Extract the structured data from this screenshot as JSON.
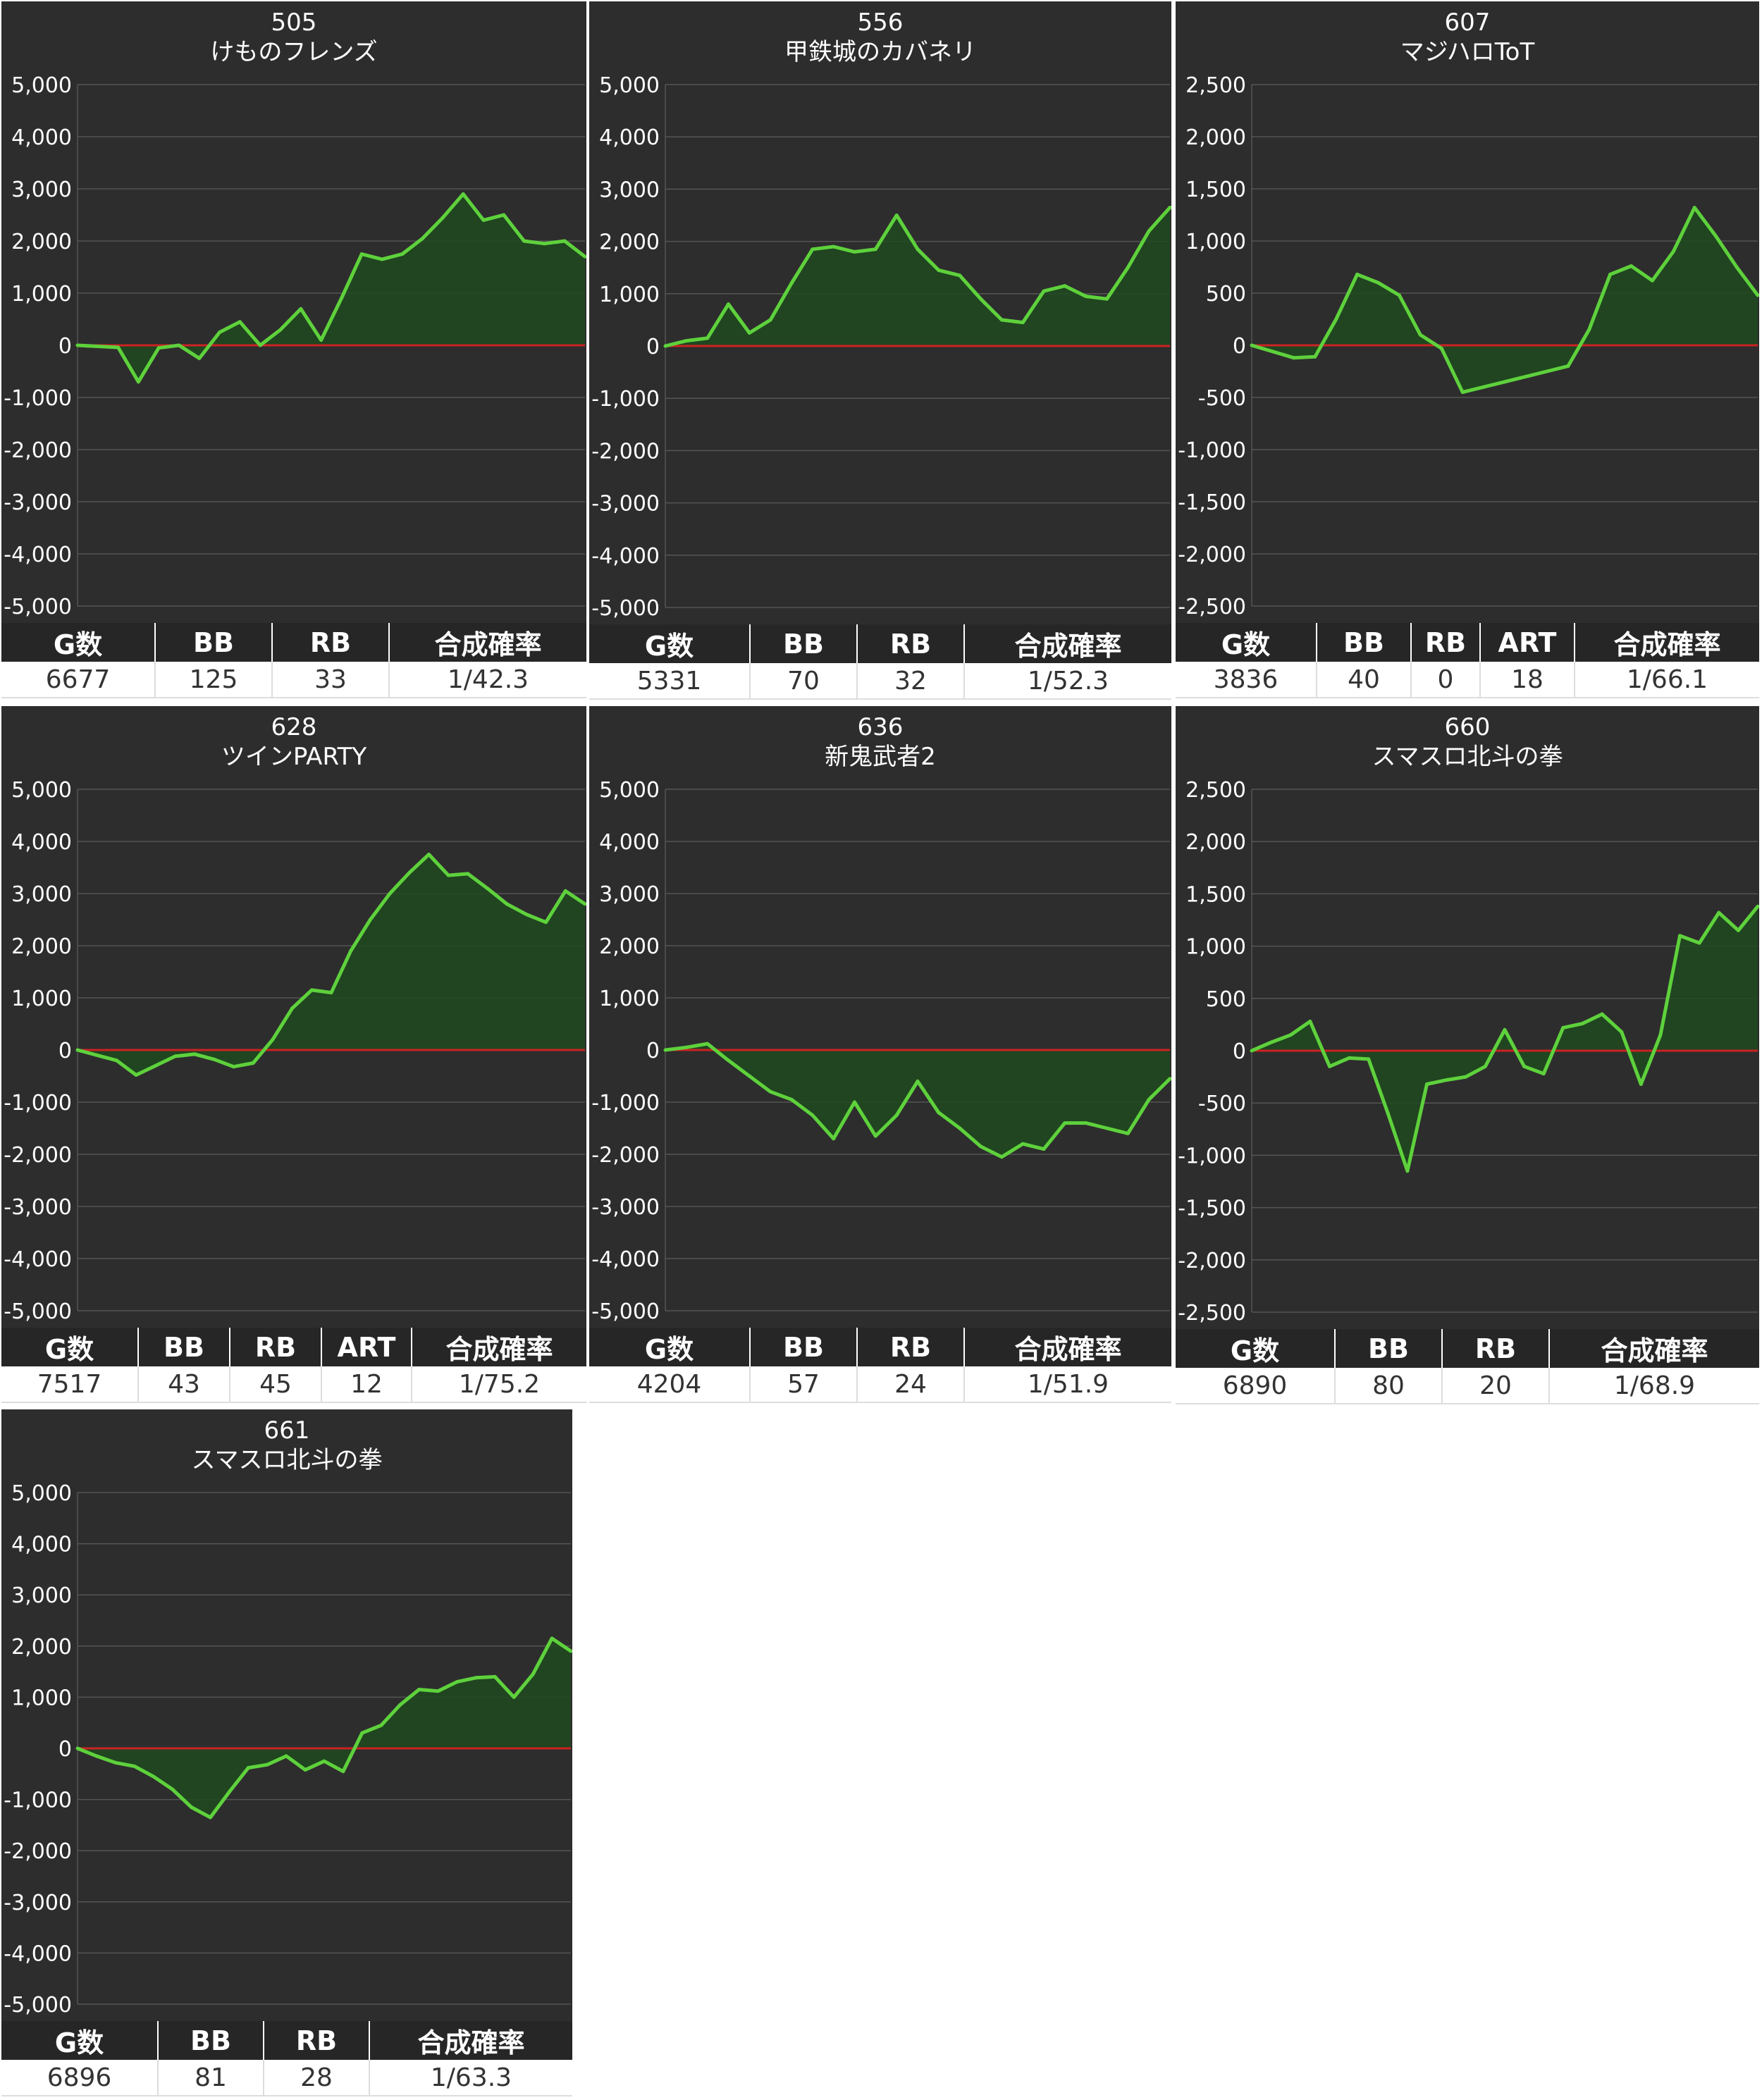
{
  "colors": {
    "background": "#2d2d2d",
    "line": "#5ed13c",
    "fill": "#1e4a1e",
    "zero_line": "#cc2222",
    "grid": "#555555",
    "tick_text": "#ffffff"
  },
  "panels": [
    {
      "number": "505",
      "name": "けものフレンズ",
      "headers": [
        "G数",
        "BB",
        "RB",
        "合成確率"
      ],
      "values": [
        "6677",
        "125",
        "33",
        "1/42.3"
      ],
      "chart_data": {
        "type": "area",
        "ylim": [
          -5000,
          5000
        ],
        "yticks": [
          5000,
          4000,
          3000,
          2000,
          1000,
          0,
          -1000,
          -2000,
          -3000,
          -4000,
          -5000
        ],
        "ytick_labels": [
          "5,000",
          "4,000",
          "3,000",
          "2,000",
          "1,000",
          "0",
          "-1,000",
          "-2,000",
          "-3,000",
          "-4,000",
          "-5,000"
        ],
        "y": [
          0,
          -20,
          -40,
          -700,
          -50,
          0,
          -250,
          250,
          450,
          0,
          300,
          700,
          100,
          900,
          1750,
          1650,
          1750,
          2050,
          2450,
          2900,
          2400,
          2500,
          2000,
          1950,
          2000,
          1700
        ]
      }
    },
    {
      "number": "556",
      "name": "甲鉄城のカバネリ",
      "headers": [
        "G数",
        "BB",
        "RB",
        "合成確率"
      ],
      "values": [
        "5331",
        "70",
        "32",
        "1/52.3"
      ],
      "chart_data": {
        "type": "area",
        "ylim": [
          -5000,
          5000
        ],
        "yticks": [
          5000,
          4000,
          3000,
          2000,
          1000,
          0,
          -1000,
          -2000,
          -3000,
          -4000,
          -5000
        ],
        "ytick_labels": [
          "5,000",
          "4,000",
          "3,000",
          "2,000",
          "1,000",
          "0",
          "-1,000",
          "-2,000",
          "-3,000",
          "-4,000",
          "-5,000"
        ],
        "y": [
          0,
          100,
          150,
          800,
          250,
          500,
          1200,
          1850,
          1900,
          1800,
          1850,
          2500,
          1850,
          1450,
          1350,
          900,
          500,
          450,
          1050,
          1150,
          950,
          900,
          1500,
          2200,
          2650
        ]
      }
    },
    {
      "number": "607",
      "name": "マジハロToT",
      "headers": [
        "G数",
        "BB",
        "RB",
        "ART",
        "合成確率"
      ],
      "values": [
        "3836",
        "40",
        "0",
        "18",
        "1/66.1"
      ],
      "chart_data": {
        "type": "area",
        "ylim": [
          -2500,
          2500
        ],
        "yticks": [
          2500,
          2000,
          1500,
          1000,
          500,
          0,
          -500,
          -1000,
          -1500,
          -2000,
          -2500
        ],
        "ytick_labels": [
          "2,500",
          "2,000",
          "1,500",
          "1,000",
          "500",
          "0",
          "-500",
          "-1,000",
          "-1,500",
          "-2,000",
          "-2,500"
        ],
        "y": [
          0,
          -60,
          -120,
          -110,
          250,
          680,
          600,
          480,
          100,
          -30,
          -450,
          -400,
          -350,
          -300,
          -250,
          -200,
          150,
          680,
          760,
          620,
          900,
          1320,
          1050,
          750,
          480
        ]
      }
    },
    {
      "number": "628",
      "name": "ツインPARTY",
      "headers": [
        "G数",
        "BB",
        "RB",
        "ART",
        "合成確率"
      ],
      "values": [
        "7517",
        "43",
        "45",
        "12",
        "1/75.2"
      ],
      "chart_data": {
        "type": "area",
        "ylim": [
          -5000,
          5000
        ],
        "yticks": [
          5000,
          4000,
          3000,
          2000,
          1000,
          0,
          -1000,
          -2000,
          -3000,
          -4000,
          -5000
        ],
        "ytick_labels": [
          "5,000",
          "4,000",
          "3,000",
          "2,000",
          "1,000",
          "0",
          "-1,000",
          "-2,000",
          "-3,000",
          "-4,000",
          "-5,000"
        ],
        "y": [
          0,
          -100,
          -200,
          -480,
          -300,
          -120,
          -80,
          -180,
          -320,
          -250,
          200,
          800,
          1150,
          1100,
          1900,
          2500,
          3000,
          3400,
          3750,
          3350,
          3380,
          3100,
          2800,
          2600,
          2450,
          3050,
          2800
        ]
      }
    },
    {
      "number": "636",
      "name": "新鬼武者2",
      "headers": [
        "G数",
        "BB",
        "RB",
        "合成確率"
      ],
      "values": [
        "4204",
        "57",
        "24",
        "1/51.9"
      ],
      "chart_data": {
        "type": "area",
        "ylim": [
          -5000,
          5000
        ],
        "yticks": [
          5000,
          4000,
          3000,
          2000,
          1000,
          0,
          -1000,
          -2000,
          -3000,
          -4000,
          -5000
        ],
        "ytick_labels": [
          "5,000",
          "4,000",
          "3,000",
          "2,000",
          "1,000",
          "0",
          "-1,000",
          "-2,000",
          "-3,000",
          "-4,000",
          "-5,000"
        ],
        "y": [
          0,
          50,
          120,
          -200,
          -500,
          -800,
          -950,
          -1250,
          -1700,
          -1000,
          -1650,
          -1250,
          -600,
          -1200,
          -1500,
          -1850,
          -2050,
          -1800,
          -1900,
          -1400,
          -1400,
          -1500,
          -1600,
          -950,
          -550
        ]
      }
    },
    {
      "number": "660",
      "name": "スマスロ北斗の拳",
      "headers": [
        "G数",
        "BB",
        "RB",
        "合成確率"
      ],
      "values": [
        "6890",
        "80",
        "20",
        "1/68.9"
      ],
      "chart_data": {
        "type": "area",
        "ylim": [
          -2500,
          2500
        ],
        "yticks": [
          2500,
          2000,
          1500,
          1000,
          500,
          0,
          -500,
          -1000,
          -1500,
          -2000,
          -2500
        ],
        "ytick_labels": [
          "2,500",
          "2,000",
          "1,500",
          "1,000",
          "500",
          "0",
          "-500",
          "-1,000",
          "-1,500",
          "-2,000",
          "-2,500"
        ],
        "y": [
          0,
          80,
          150,
          280,
          -150,
          -70,
          -80,
          -600,
          -1150,
          -320,
          -280,
          -250,
          -150,
          200,
          -150,
          -220,
          220,
          260,
          350,
          180,
          -320,
          150,
          1100,
          1030,
          1320,
          1150,
          1380
        ]
      }
    },
    {
      "number": "661",
      "name": "スマスロ北斗の拳",
      "headers": [
        "G数",
        "BB",
        "RB",
        "合成確率"
      ],
      "values": [
        "6896",
        "81",
        "28",
        "1/63.3"
      ],
      "chart_data": {
        "type": "area",
        "ylim": [
          -5000,
          5000
        ],
        "yticks": [
          5000,
          4000,
          3000,
          2000,
          1000,
          0,
          -1000,
          -2000,
          -3000,
          -4000,
          -5000
        ],
        "ytick_labels": [
          "5,000",
          "4,000",
          "3,000",
          "2,000",
          "1,000",
          "0",
          "-1,000",
          "-2,000",
          "-3,000",
          "-4,000",
          "-5,000"
        ],
        "y": [
          0,
          -150,
          -280,
          -350,
          -550,
          -800,
          -1150,
          -1350,
          -850,
          -380,
          -320,
          -150,
          -420,
          -250,
          -450,
          300,
          450,
          850,
          1150,
          1120,
          1300,
          1380,
          1400,
          1000,
          1450,
          2150,
          1900
        ]
      }
    }
  ]
}
